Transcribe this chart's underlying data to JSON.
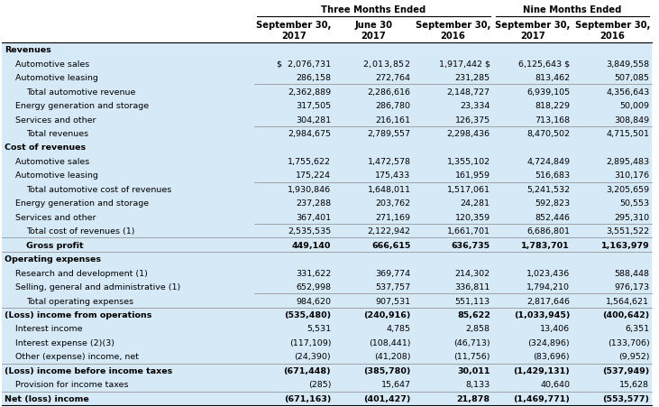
{
  "header_group1": "Three Months Ended",
  "header_group2": "Nine Months Ended",
  "col_headers": [
    "September 30,\n2017",
    "June 30\n2017",
    "September 30,\n2016",
    "September 30,\n2017",
    "September 30,\n2016"
  ],
  "rows": [
    {
      "label": "Revenues",
      "values": [
        "",
        "",
        "",
        "",
        ""
      ],
      "style": "section",
      "indent": 0
    },
    {
      "label": "Automotive sales",
      "values": [
        "$  2,076,731",
        "$2,013,852 $",
        "1,917,442 $",
        "6,125,643 $",
        "3,849,558"
      ],
      "style": "normal",
      "indent": 1
    },
    {
      "label": "Automotive leasing",
      "values": [
        "286,158",
        "272,764",
        "231,285",
        "813,462",
        "507,085"
      ],
      "style": "normal",
      "indent": 1
    },
    {
      "label": "Total automotive revenue",
      "values": [
        "2,362,889",
        "2,286,616",
        "2,148,727",
        "6,939,105",
        "4,356,643"
      ],
      "style": "subtotal",
      "indent": 2
    },
    {
      "label": "Energy generation and storage",
      "values": [
        "317,505",
        "286,780",
        "23,334",
        "818,229",
        "50,009"
      ],
      "style": "normal",
      "indent": 1
    },
    {
      "label": "Services and other",
      "values": [
        "304,281",
        "216,161",
        "126,375",
        "713,168",
        "308,849"
      ],
      "style": "normal",
      "indent": 1
    },
    {
      "label": "Total revenues",
      "values": [
        "2,984,675",
        "2,789,557",
        "2,298,436",
        "8,470,502",
        "4,715,501"
      ],
      "style": "subtotal",
      "indent": 2
    },
    {
      "label": "Cost of revenues",
      "values": [
        "",
        "",
        "",
        "",
        ""
      ],
      "style": "section",
      "indent": 0
    },
    {
      "label": "Automotive sales",
      "values": [
        "1,755,622",
        "1,472,578",
        "1,355,102",
        "4,724,849",
        "2,895,483"
      ],
      "style": "normal",
      "indent": 1
    },
    {
      "label": "Automotive leasing",
      "values": [
        "175,224",
        "175,433",
        "161,959",
        "516,683",
        "310,176"
      ],
      "style": "normal",
      "indent": 1
    },
    {
      "label": "Total automotive cost of revenues",
      "values": [
        "1,930,846",
        "1,648,011",
        "1,517,061",
        "5,241,532",
        "3,205,659"
      ],
      "style": "subtotal",
      "indent": 2
    },
    {
      "label": "Energy generation and storage",
      "values": [
        "237,288",
        "203,762",
        "24,281",
        "592,823",
        "50,553"
      ],
      "style": "normal",
      "indent": 1
    },
    {
      "label": "Services and other",
      "values": [
        "367,401",
        "271,169",
        "120,359",
        "852,446",
        "295,310"
      ],
      "style": "normal",
      "indent": 1
    },
    {
      "label": "Total cost of revenues (1)",
      "values": [
        "2,535,535",
        "2,122,942",
        "1,661,701",
        "6,686,801",
        "3,551,522"
      ],
      "style": "subtotal",
      "indent": 2
    },
    {
      "label": "Gross profit",
      "values": [
        "449,140",
        "666,615",
        "636,735",
        "1,783,701",
        "1,163,979"
      ],
      "style": "gross_profit",
      "indent": 2
    },
    {
      "label": "Operating expenses",
      "values": [
        "",
        "",
        "",
        "",
        ""
      ],
      "style": "section",
      "indent": 0
    },
    {
      "label": "Research and development (1)",
      "values": [
        "331,622",
        "369,774",
        "214,302",
        "1,023,436",
        "588,448"
      ],
      "style": "normal",
      "indent": 1
    },
    {
      "label": "Selling, general and administrative (1)",
      "values": [
        "652,998",
        "537,757",
        "336,811",
        "1,794,210",
        "976,173"
      ],
      "style": "normal",
      "indent": 1
    },
    {
      "label": "Total operating expenses",
      "values": [
        "984,620",
        "907,531",
        "551,113",
        "2,817,646",
        "1,564,621"
      ],
      "style": "subtotal",
      "indent": 2
    },
    {
      "label": "(Loss) income from operations",
      "values": [
        "(535,480)",
        "(240,916)",
        "85,622",
        "(1,033,945)",
        "(400,642)"
      ],
      "style": "bold_normal",
      "indent": 0
    },
    {
      "label": "Interest income",
      "values": [
        "5,531",
        "4,785",
        "2,858",
        "13,406",
        "6,351"
      ],
      "style": "normal",
      "indent": 1
    },
    {
      "label": "Interest expense (2)(3)",
      "values": [
        "(117,109)",
        "(108,441)",
        "(46,713)",
        "(324,896)",
        "(133,706)"
      ],
      "style": "normal",
      "indent": 1
    },
    {
      "label": "Other (expense) income, net",
      "values": [
        "(24,390)",
        "(41,208)",
        "(11,756)",
        "(83,696)",
        "(9,952)"
      ],
      "style": "normal",
      "indent": 1
    },
    {
      "label": "(Loss) income before income taxes",
      "values": [
        "(671,448)",
        "(385,780)",
        "30,011",
        "(1,429,131)",
        "(537,949)"
      ],
      "style": "bold_normal",
      "indent": 0
    },
    {
      "label": "Provision for income taxes",
      "values": [
        "(285)",
        "15,647",
        "8,133",
        "40,640",
        "15,628"
      ],
      "style": "normal",
      "indent": 1
    },
    {
      "label": "Net (loss) income",
      "values": [
        "(671,163)",
        "(401,427)",
        "21,878",
        "(1,469,771)",
        "(553,577)"
      ],
      "style": "bold_bottom",
      "indent": 0
    }
  ],
  "bg_light": "#d6e9f7",
  "bg_white": "#ffffff",
  "text_color": "#000000",
  "font_size": 6.8,
  "header_font_size": 7.2
}
